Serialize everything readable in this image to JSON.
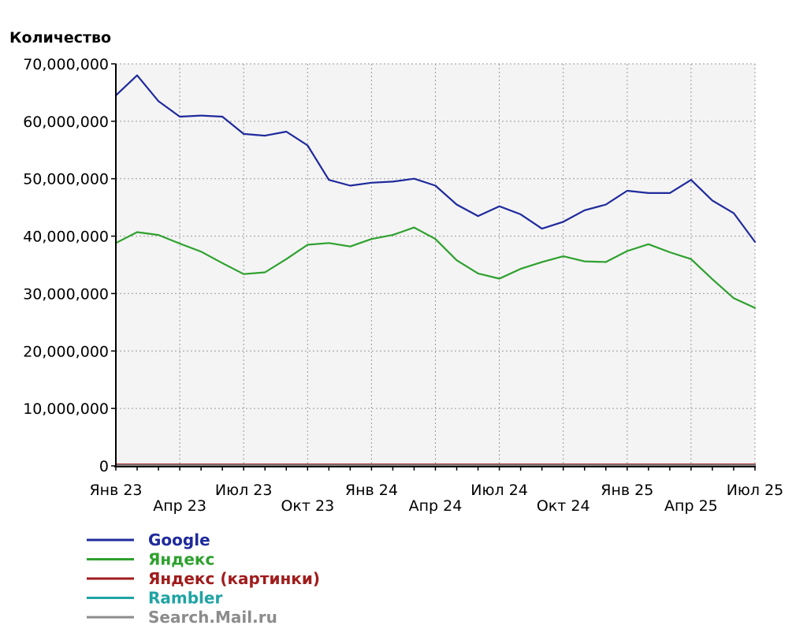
{
  "chart_data": {
    "type": "line",
    "title": "",
    "ylabel": "Количество",
    "xlabel": "",
    "ylim": [
      0,
      70000000
    ],
    "yticks": [
      0,
      10000000,
      20000000,
      30000000,
      40000000,
      50000000,
      60000000,
      70000000
    ],
    "ytick_labels": [
      "0",
      "10,000,000",
      "20,000,000",
      "30,000,000",
      "40,000,000",
      "50,000,000",
      "60,000,000",
      "70,000,000"
    ],
    "grid": true,
    "legend_position": "bottom-left",
    "x": [
      "2023-01",
      "2023-02",
      "2023-03",
      "2023-04",
      "2023-05",
      "2023-06",
      "2023-07",
      "2023-08",
      "2023-09",
      "2023-10",
      "2023-11",
      "2023-12",
      "2024-01",
      "2024-02",
      "2024-03",
      "2024-04",
      "2024-05",
      "2024-06",
      "2024-07",
      "2024-08",
      "2024-09",
      "2024-10",
      "2024-11",
      "2024-12",
      "2025-01",
      "2025-02",
      "2025-03",
      "2025-04",
      "2025-05",
      "2025-06",
      "2025-07"
    ],
    "xticks": [
      {
        "index": 0,
        "label": "Янв 23",
        "row": 1
      },
      {
        "index": 3,
        "label": "Апр 23",
        "row": 2
      },
      {
        "index": 6,
        "label": "Июл 23",
        "row": 1
      },
      {
        "index": 9,
        "label": "Окт 23",
        "row": 2
      },
      {
        "index": 12,
        "label": "Янв 24",
        "row": 1
      },
      {
        "index": 15,
        "label": "Апр 24",
        "row": 2
      },
      {
        "index": 18,
        "label": "Июл 24",
        "row": 1
      },
      {
        "index": 21,
        "label": "Окт 24",
        "row": 2
      },
      {
        "index": 24,
        "label": "Янв 25",
        "row": 1
      },
      {
        "index": 27,
        "label": "Апр 25",
        "row": 2
      },
      {
        "index": 30,
        "label": "Июл 25",
        "row": 1
      }
    ],
    "series": [
      {
        "name": "Google",
        "color": "#1f2a9c",
        "values": [
          64500000,
          68000000,
          63500000,
          60800000,
          61000000,
          60800000,
          57800000,
          57500000,
          58200000,
          55800000,
          49800000,
          48800000,
          49300000,
          49500000,
          50000000,
          48800000,
          45500000,
          43500000,
          45200000,
          43800000,
          41300000,
          42500000,
          44500000,
          45500000,
          47900000,
          47500000,
          47500000,
          49800000,
          46200000,
          44000000,
          39000000
        ]
      },
      {
        "name": "Яндекс",
        "color": "#2ea12e",
        "values": [
          38800000,
          40700000,
          40200000,
          38700000,
          37300000,
          35300000,
          33400000,
          33700000,
          36000000,
          38500000,
          38800000,
          38200000,
          39500000,
          40200000,
          41500000,
          39500000,
          35800000,
          33500000,
          32600000,
          34300000,
          35500000,
          36500000,
          35600000,
          35500000,
          37400000,
          38600000,
          37200000,
          36000000,
          32500000,
          29200000,
          27500000
        ]
      },
      {
        "name": "Яндекс (картинки)",
        "color": "#a01c1c",
        "values": [
          250000,
          250000,
          250000,
          250000,
          250000,
          250000,
          250000,
          250000,
          250000,
          250000,
          250000,
          250000,
          250000,
          250000,
          250000,
          250000,
          250000,
          250000,
          250000,
          250000,
          250000,
          250000,
          250000,
          250000,
          250000,
          250000,
          250000,
          250000,
          250000,
          250000,
          250000
        ]
      },
      {
        "name": "Rambler",
        "color": "#1fa3a3",
        "values": [
          100000,
          100000,
          100000,
          100000,
          100000,
          100000,
          100000,
          100000,
          100000,
          100000,
          100000,
          100000,
          100000,
          100000,
          100000,
          100000,
          100000,
          100000,
          100000,
          100000,
          100000,
          100000,
          100000,
          100000,
          100000,
          100000,
          100000,
          100000,
          100000,
          100000,
          100000
        ]
      },
      {
        "name": "Search.Mail.ru",
        "color": "#8c8c8c",
        "values": [
          50000,
          50000,
          50000,
          50000,
          50000,
          50000,
          50000,
          50000,
          50000,
          50000,
          50000,
          50000,
          50000,
          50000,
          50000,
          50000,
          50000,
          50000,
          50000,
          50000,
          50000,
          50000,
          50000,
          50000,
          50000,
          50000,
          50000,
          50000,
          50000,
          50000,
          50000
        ]
      }
    ]
  }
}
